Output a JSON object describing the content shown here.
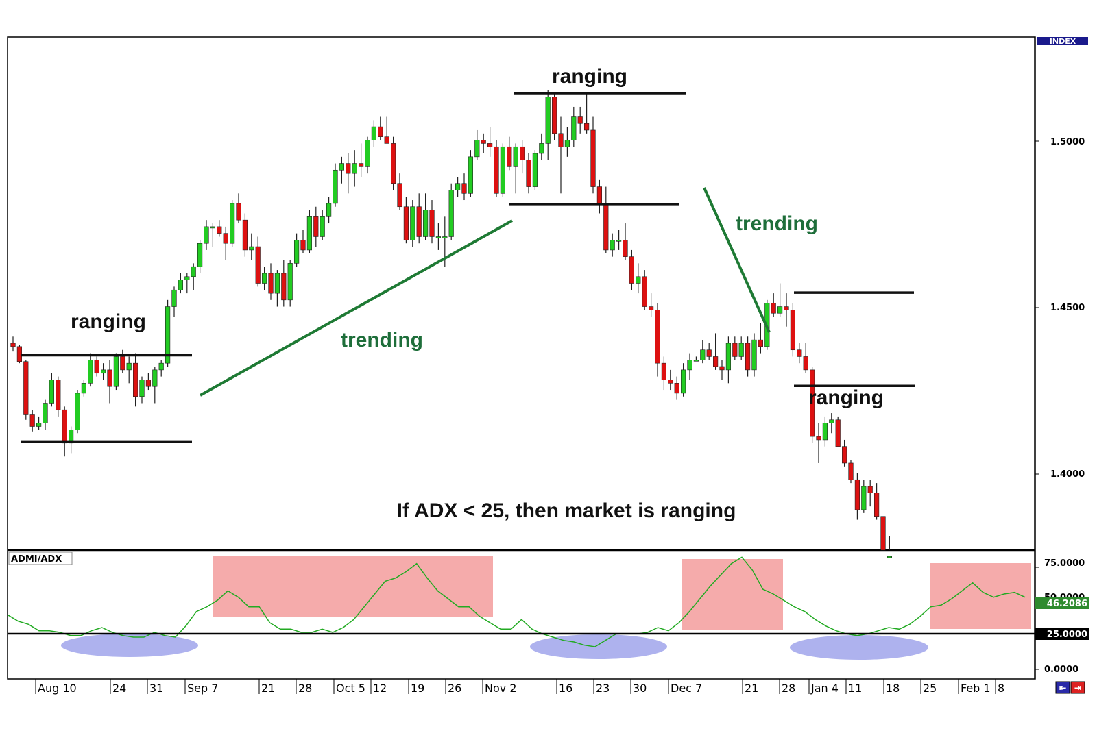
{
  "chart_data": [
    {
      "type": "candlestick",
      "indicator_label": "INDEX",
      "y_ticks": [
        "1.5000",
        "1.4500",
        "1.4000"
      ],
      "ylim": [
        1.377,
        1.532
      ],
      "x_ticks": [
        "Aug 10",
        "24",
        "31",
        "Sep 7",
        "21",
        "28",
        "Oct 5",
        "12",
        "19",
        "26",
        "Nov 2",
        "16",
        "23",
        "30",
        "Dec 7",
        "21",
        "28",
        "Jan 4",
        "11",
        "18",
        "25",
        "Feb 1",
        "8"
      ],
      "grid": false,
      "annotations": {
        "range1": "ranging",
        "range2": "ranging",
        "range3": "ranging",
        "trend1": "trending",
        "trend2": "trending",
        "rule": "If ADX < 25, then market is ranging"
      },
      "levels": {
        "range1_top": 1.4357,
        "range1_bottom": 1.4098,
        "range2_top": 1.5144,
        "range2_bottom": 1.4811,
        "range3_top": 1.4545,
        "range3_bottom": 1.4265
      },
      "colors": {
        "up": "#22cc22",
        "down": "#dd1111",
        "annotation": "#1e6e3a",
        "trendline": "#1e7a34"
      }
    },
    {
      "type": "line",
      "title": "ADMI/ADX",
      "y_ticks": [
        "75.0000",
        "50.0000",
        "25.0000",
        "0.0000"
      ],
      "ylim": [
        0,
        75
      ],
      "current_value": "46.2086",
      "threshold": 25,
      "threshold_label": "25.0000",
      "series": [
        {
          "values": [
            35,
            31,
            29,
            25,
            25,
            24,
            22,
            22,
            25,
            27,
            24,
            22,
            21,
            21,
            24,
            22,
            21,
            28,
            37,
            40,
            44,
            50,
            46,
            40,
            40,
            30,
            26,
            26,
            24,
            24,
            26,
            24,
            27,
            32,
            40,
            48,
            56,
            58,
            62,
            67,
            58,
            50,
            45,
            40,
            40,
            34,
            30,
            26,
            26,
            32,
            26,
            23,
            21,
            19,
            18,
            16,
            15,
            19,
            23,
            23,
            23,
            24,
            27,
            25,
            30,
            37,
            45,
            53,
            60,
            67,
            71,
            63,
            51,
            48,
            44,
            40,
            37,
            32,
            28,
            25,
            23,
            22,
            23,
            25,
            27,
            26,
            29,
            34,
            40,
            41,
            45,
            50,
            55,
            49,
            46,
            48,
            49,
            46
          ]
        }
      ],
      "colors": {
        "line": "#22aa22",
        "high_zone": "#f4a6a6",
        "low_zone": "#aeb2ee"
      }
    }
  ],
  "nav": {
    "left_icon": "scroll-left-icon",
    "right_icon": "scroll-right-icon"
  }
}
